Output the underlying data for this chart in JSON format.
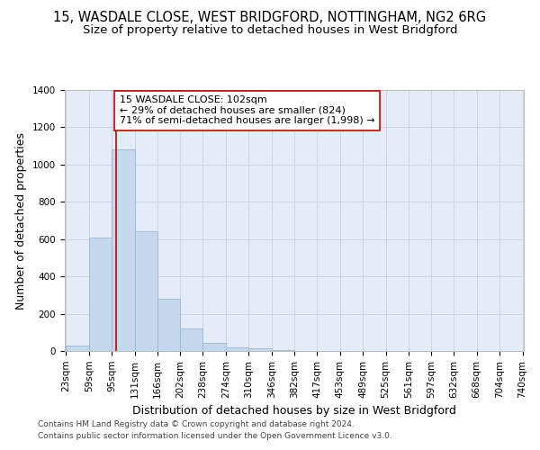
{
  "title_line1": "15, WASDALE CLOSE, WEST BRIDGFORD, NOTTINGHAM, NG2 6RG",
  "title_line2": "Size of property relative to detached houses in West Bridgford",
  "xlabel": "Distribution of detached houses by size in West Bridgford",
  "ylabel": "Number of detached properties",
  "bar_left_edges": [
    23,
    59,
    95,
    131,
    166,
    202,
    238,
    274,
    310,
    346,
    382,
    417,
    453,
    489,
    525,
    561,
    597,
    632,
    668,
    704
  ],
  "bar_heights": [
    30,
    610,
    1080,
    640,
    280,
    120,
    45,
    20,
    15,
    5,
    2,
    1,
    0,
    0,
    0,
    0,
    0,
    0,
    0,
    0
  ],
  "bin_width": 36,
  "bar_color": "#c5d8ee",
  "bar_edgecolor": "#a0bcd8",
  "bar_linewidth": 0.7,
  "grid_color": "#ccd5e3",
  "bg_color": "#e4ecf7",
  "reference_line_x": 102,
  "reference_line_color": "#cc0000",
  "annotation_line1": "15 WASDALE CLOSE: 102sqm",
  "annotation_line2": "← 29% of detached houses are smaller (824)",
  "annotation_line3": "71% of semi-detached houses are larger (1,998) →",
  "annotation_box_color": "#ffffff",
  "annotation_box_edgecolor": "#cc0000",
  "ylim": [
    0,
    1400
  ],
  "yticks": [
    0,
    200,
    400,
    600,
    800,
    1000,
    1200,
    1400
  ],
  "tick_labels": [
    "23sqm",
    "59sqm",
    "95sqm",
    "131sqm",
    "166sqm",
    "202sqm",
    "238sqm",
    "274sqm",
    "310sqm",
    "346sqm",
    "382sqm",
    "417sqm",
    "453sqm",
    "489sqm",
    "525sqm",
    "561sqm",
    "597sqm",
    "632sqm",
    "668sqm",
    "704sqm",
    "740sqm"
  ],
  "footer_line1": "Contains HM Land Registry data © Crown copyright and database right 2024.",
  "footer_line2": "Contains public sector information licensed under the Open Government Licence v3.0.",
  "title_fontsize": 10.5,
  "subtitle_fontsize": 9.5,
  "axis_label_fontsize": 9,
  "tick_fontsize": 7.5,
  "annotation_fontsize": 8,
  "footer_fontsize": 6.5
}
